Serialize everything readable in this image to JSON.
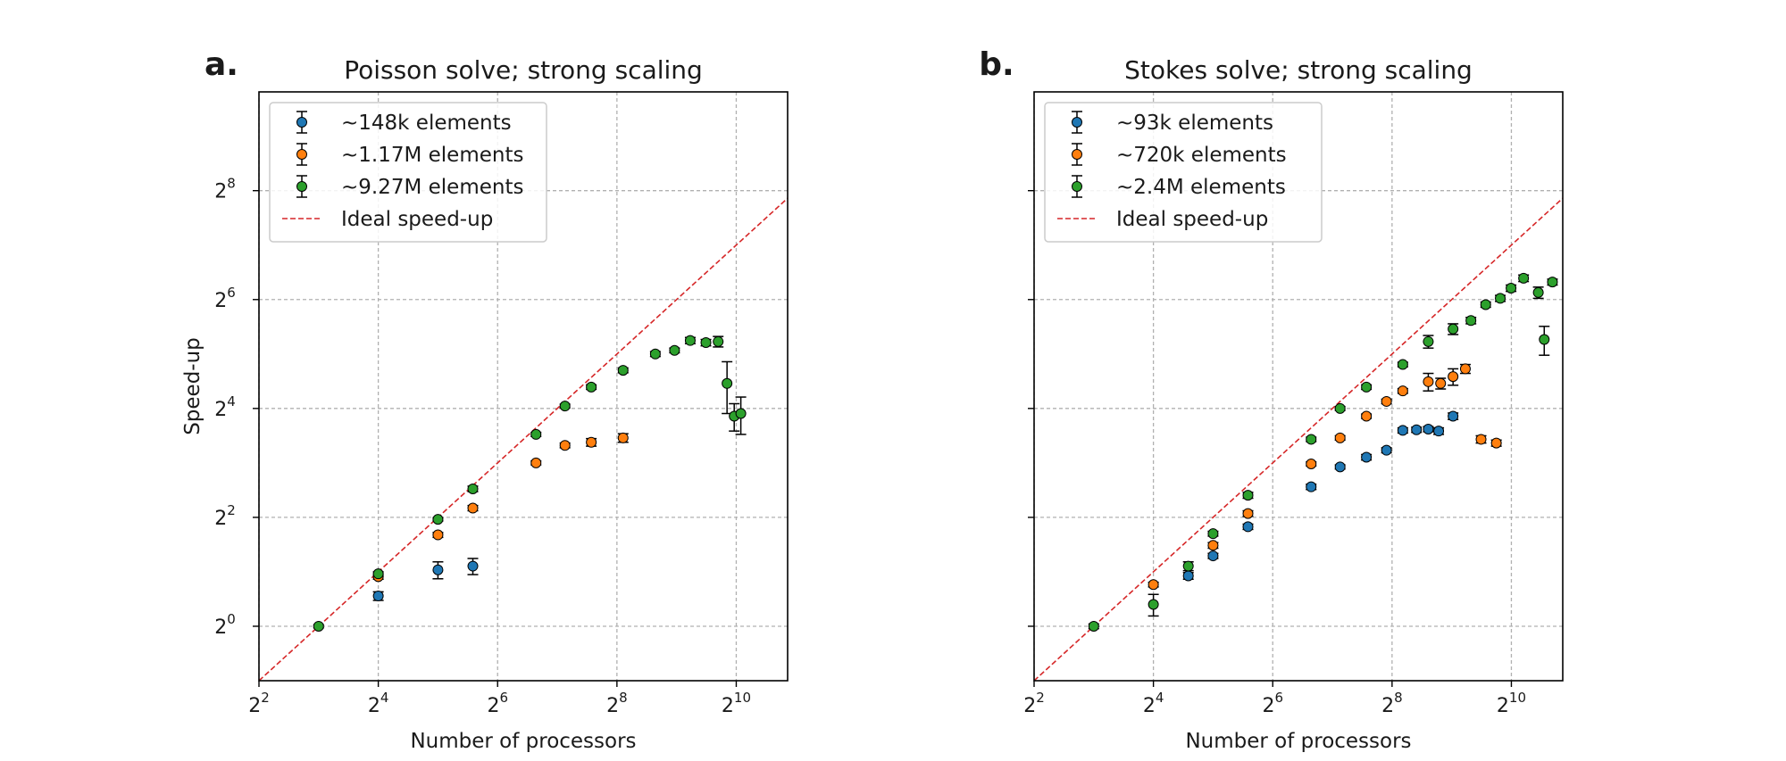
{
  "chart_data": [
    {
      "type": "scatter",
      "panel_label": "a.",
      "title": "Poisson solve; strong scaling",
      "xlabel": "Number of processors",
      "ylabel": "Speed-up",
      "xscale": "log2",
      "yscale": "log2",
      "xlim": [
        4,
        1860
      ],
      "ylim": [
        0.5,
        900
      ],
      "xticks": [
        {
          "value": 4,
          "base": "2",
          "exp": "2"
        },
        {
          "value": 16,
          "base": "2",
          "exp": "4"
        },
        {
          "value": 64,
          "base": "2",
          "exp": "6"
        },
        {
          "value": 256,
          "base": "2",
          "exp": "8"
        },
        {
          "value": 1024,
          "base": "2",
          "exp": "10"
        }
      ],
      "yticks": [
        {
          "value": 1,
          "base": "2",
          "exp": "0"
        },
        {
          "value": 4,
          "base": "2",
          "exp": "2"
        },
        {
          "value": 16,
          "base": "2",
          "exp": "4"
        },
        {
          "value": 64,
          "base": "2",
          "exp": "6"
        },
        {
          "value": 256,
          "base": "2",
          "exp": "8"
        }
      ],
      "grid": true,
      "legend_position": "upper-left",
      "ideal_line": {
        "label": "Ideal speed-up",
        "color": "#d62728"
      },
      "series": [
        {
          "name": "~148k elements",
          "color": "#1f77b4",
          "points": [
            {
              "x": 16,
              "y": 1.47,
              "err": 0.08
            },
            {
              "x": 32,
              "y": 2.05,
              "err": 0.22
            },
            {
              "x": 48,
              "y": 2.15,
              "err": 0.22
            }
          ]
        },
        {
          "name": "~1.17M elements",
          "color": "#ff7f0e",
          "points": [
            {
              "x": 16,
              "y": 1.88,
              "err": 0.06
            },
            {
              "x": 32,
              "y": 3.2,
              "err": 0.1
            },
            {
              "x": 48,
              "y": 4.5,
              "err": 0.15
            },
            {
              "x": 100,
              "y": 8.0,
              "err": 0.2
            },
            {
              "x": 140,
              "y": 10.0,
              "err": 0.3
            },
            {
              "x": 190,
              "y": 10.4,
              "err": 0.5
            },
            {
              "x": 275,
              "y": 11.0,
              "err": 0.6
            }
          ]
        },
        {
          "name": "~9.27M elements",
          "color": "#2ca02c",
          "points": [
            {
              "x": 8,
              "y": 1.0,
              "err": 0.02
            },
            {
              "x": 16,
              "y": 1.95,
              "err": 0.05
            },
            {
              "x": 32,
              "y": 3.9,
              "err": 0.08
            },
            {
              "x": 48,
              "y": 5.75,
              "err": 0.2
            },
            {
              "x": 100,
              "y": 11.5,
              "err": 0.3
            },
            {
              "x": 140,
              "y": 16.5,
              "err": 0.4
            },
            {
              "x": 190,
              "y": 21.0,
              "err": 0.6
            },
            {
              "x": 275,
              "y": 26.0,
              "err": 0.8
            },
            {
              "x": 400,
              "y": 32.0,
              "err": 1.0
            },
            {
              "x": 500,
              "y": 33.5,
              "err": 1.0
            },
            {
              "x": 600,
              "y": 38.0,
              "err": 1.5
            },
            {
              "x": 720,
              "y": 37.0,
              "err": 1.5
            },
            {
              "x": 830,
              "y": 37.5,
              "err": 2.5
            },
            {
              "x": 920,
              "y": 22.0,
              "err": 7.0
            },
            {
              "x": 1000,
              "y": 14.5,
              "err": 2.5
            },
            {
              "x": 1080,
              "y": 15.0,
              "err": 3.5
            }
          ]
        }
      ]
    },
    {
      "type": "scatter",
      "panel_label": "b.",
      "title": "Stokes solve; strong scaling",
      "xlabel": "Number of processors",
      "ylabel": "",
      "xscale": "log2",
      "yscale": "log2",
      "xlim": [
        4,
        1860
      ],
      "ylim": [
        0.5,
        900
      ],
      "xticks": [
        {
          "value": 4,
          "base": "2",
          "exp": "2"
        },
        {
          "value": 16,
          "base": "2",
          "exp": "4"
        },
        {
          "value": 64,
          "base": "2",
          "exp": "6"
        },
        {
          "value": 256,
          "base": "2",
          "exp": "8"
        },
        {
          "value": 1024,
          "base": "2",
          "exp": "10"
        }
      ],
      "yticks": [],
      "grid": true,
      "legend_position": "upper-left",
      "ideal_line": {
        "label": "Ideal speed-up",
        "color": "#d62728"
      },
      "series": [
        {
          "name": "~93k elements",
          "color": "#1f77b4",
          "points": [
            {
              "x": 24,
              "y": 1.9,
              "err": 0.08
            },
            {
              "x": 32,
              "y": 2.45,
              "err": 0.08
            },
            {
              "x": 48,
              "y": 3.55,
              "err": 0.12
            },
            {
              "x": 100,
              "y": 5.9,
              "err": 0.2
            },
            {
              "x": 140,
              "y": 7.6,
              "err": 0.2
            },
            {
              "x": 190,
              "y": 8.6,
              "err": 0.3
            },
            {
              "x": 240,
              "y": 9.4,
              "err": 0.3
            },
            {
              "x": 290,
              "y": 12.1,
              "err": 0.4
            },
            {
              "x": 340,
              "y": 12.2,
              "err": 0.4
            },
            {
              "x": 390,
              "y": 12.3,
              "err": 0.4
            },
            {
              "x": 440,
              "y": 12.0,
              "err": 0.5
            },
            {
              "x": 520,
              "y": 14.5,
              "err": 0.6
            }
          ]
        },
        {
          "name": "~720k elements",
          "color": "#ff7f0e",
          "points": [
            {
              "x": 16,
              "y": 1.7,
              "err": 0.05
            },
            {
              "x": 32,
              "y": 2.8,
              "err": 0.1
            },
            {
              "x": 48,
              "y": 4.2,
              "err": 0.15
            },
            {
              "x": 100,
              "y": 7.9,
              "err": 0.2
            },
            {
              "x": 140,
              "y": 11.0,
              "err": 0.3
            },
            {
              "x": 190,
              "y": 14.5,
              "err": 0.4
            },
            {
              "x": 240,
              "y": 17.5,
              "err": 0.5
            },
            {
              "x": 290,
              "y": 20.0,
              "err": 0.6
            },
            {
              "x": 390,
              "y": 22.5,
              "err": 2.5
            },
            {
              "x": 450,
              "y": 22.0,
              "err": 1.5
            },
            {
              "x": 520,
              "y": 24.0,
              "err": 2.5
            },
            {
              "x": 600,
              "y": 26.5,
              "err": 1.5
            },
            {
              "x": 720,
              "y": 10.8,
              "err": 0.5
            },
            {
              "x": 860,
              "y": 10.3,
              "err": 0.4
            }
          ]
        },
        {
          "name": "~2.4M elements",
          "color": "#2ca02c",
          "points": [
            {
              "x": 8,
              "y": 1.0,
              "err": 0.03
            },
            {
              "x": 16,
              "y": 1.32,
              "err": 0.18
            },
            {
              "x": 24,
              "y": 2.15,
              "err": 0.12
            },
            {
              "x": 32,
              "y": 3.25,
              "err": 0.1
            },
            {
              "x": 48,
              "y": 5.3,
              "err": 0.2
            },
            {
              "x": 100,
              "y": 10.8,
              "err": 0.3
            },
            {
              "x": 140,
              "y": 16.0,
              "err": 0.4
            },
            {
              "x": 190,
              "y": 21.0,
              "err": 0.6
            },
            {
              "x": 290,
              "y": 28.0,
              "err": 0.8
            },
            {
              "x": 390,
              "y": 37.5,
              "err": 3.0
            },
            {
              "x": 520,
              "y": 44.0,
              "err": 3.0
            },
            {
              "x": 640,
              "y": 49.0,
              "err": 2.0
            },
            {
              "x": 760,
              "y": 60.0,
              "err": 2.0
            },
            {
              "x": 900,
              "y": 65.0,
              "err": 2.5
            },
            {
              "x": 1020,
              "y": 74.0,
              "err": 3.0
            },
            {
              "x": 1180,
              "y": 84.0,
              "err": 3.5
            },
            {
              "x": 1400,
              "y": 70.0,
              "err": 5.0
            },
            {
              "x": 1500,
              "y": 38.5,
              "err": 7.0
            },
            {
              "x": 1650,
              "y": 80.0,
              "err": 3.0
            }
          ]
        }
      ]
    }
  ]
}
